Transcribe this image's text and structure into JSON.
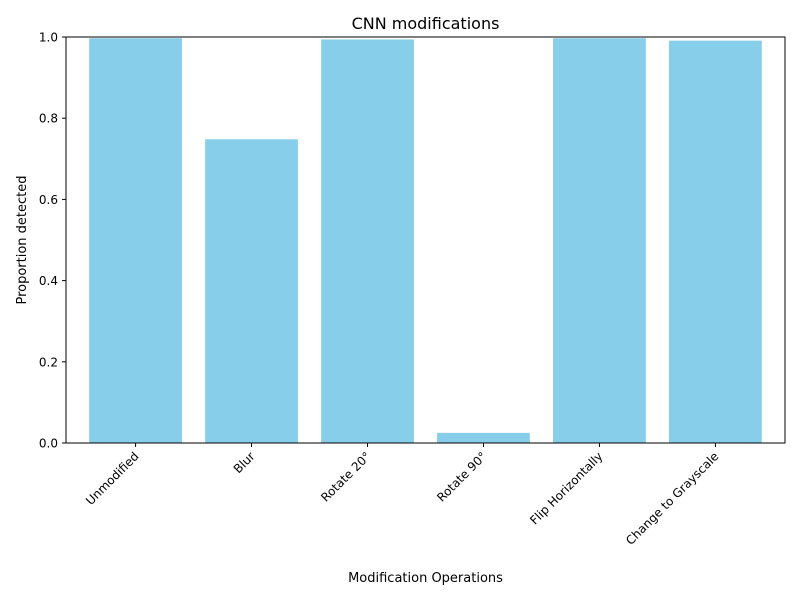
{
  "chart_data": {
    "type": "bar",
    "title": "CNN modifications",
    "xlabel": "Modification Operations",
    "ylabel": "Proportion detected",
    "categories": [
      "Unmodified",
      "Blur",
      "Rotate 20°",
      "Rotate 90°",
      "Flip Horizontally",
      "Change to Grayscale"
    ],
    "values": [
      0.997,
      0.748,
      0.994,
      0.025,
      0.997,
      0.991
    ],
    "ylim": [
      0,
      1.0
    ],
    "yticks": [
      "0.0",
      "0.2",
      "0.4",
      "0.6",
      "0.8",
      "1.0"
    ],
    "bar_color": "#87CEEB",
    "grid": false,
    "legend": "none"
  }
}
